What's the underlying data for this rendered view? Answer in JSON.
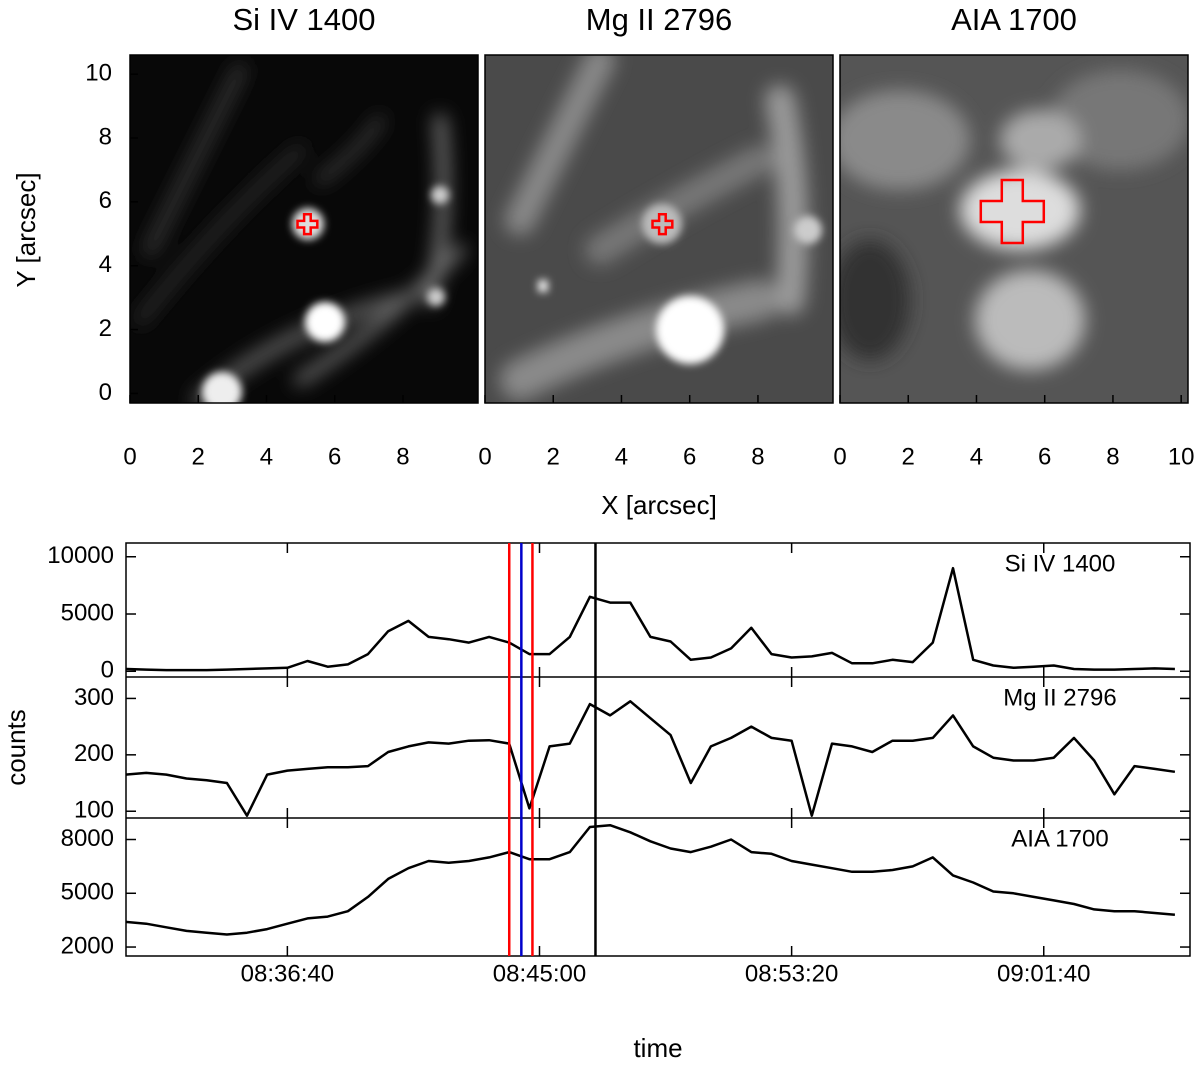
{
  "chart_data": [
    {
      "type": "image",
      "title": "Si IV 1400",
      "xlim": [
        0,
        10.2
      ],
      "ylim": [
        -0.3,
        10.6
      ],
      "xticks": [
        0,
        2,
        4,
        6,
        8
      ],
      "yticks": [
        0,
        2,
        4,
        6,
        8,
        10
      ],
      "ylabel": "Y [arcsec]",
      "marker": [
        5.2,
        5.3
      ],
      "marker_color": "#ff0000"
    },
    {
      "type": "image",
      "title": "Mg II 2796",
      "xlim": [
        0,
        10.2
      ],
      "ylim": [
        -0.3,
        10.6
      ],
      "xticks": [
        0,
        2,
        4,
        6,
        8
      ],
      "xlabel": "X [arcsec]",
      "marker": [
        5.2,
        5.3
      ],
      "marker_color": "#ff0000"
    },
    {
      "type": "image",
      "title": "AIA 1700",
      "xlim": [
        0,
        10.2
      ],
      "ylim": [
        -0.3,
        10.6
      ],
      "xticks": [
        0,
        2,
        4,
        6,
        8,
        10
      ],
      "marker": [
        5.05,
        5.7
      ],
      "marker_color": "#ff0000"
    },
    {
      "type": "line",
      "label": "Si IV 1400",
      "xlim": [
        "08:31:20",
        "09:06:30"
      ],
      "ylim": [
        -500,
        11200
      ],
      "yticks": [
        0,
        5000,
        10000
      ],
      "x": [
        "08:31:20",
        "08:32:00",
        "08:32:40",
        "08:33:20",
        "08:34:00",
        "08:34:40",
        "08:35:20",
        "08:36:00",
        "08:36:40",
        "08:37:20",
        "08:38:00",
        "08:38:40",
        "08:39:20",
        "08:40:00",
        "08:40:40",
        "08:41:20",
        "08:42:00",
        "08:42:40",
        "08:43:20",
        "08:44:00",
        "08:44:40",
        "08:45:20",
        "08:46:00",
        "08:46:40",
        "08:47:20",
        "08:48:00",
        "08:48:40",
        "08:49:20",
        "08:50:00",
        "08:50:40",
        "08:51:20",
        "08:52:00",
        "08:52:40",
        "08:53:20",
        "08:54:00",
        "08:54:40",
        "08:55:20",
        "08:56:00",
        "08:56:40",
        "08:57:20",
        "08:58:00",
        "08:58:40",
        "08:59:20",
        "09:00:00",
        "09:00:40",
        "09:01:20",
        "09:02:00",
        "09:02:40",
        "09:03:20",
        "09:04:00",
        "09:04:40",
        "09:05:20",
        "09:06:00"
      ],
      "series": [
        {
          "color": "#000000",
          "values": [
            200,
            150,
            100,
            100,
            100,
            150,
            200,
            250,
            300,
            900,
            400,
            600,
            1500,
            3500,
            4400,
            3000,
            2800,
            2500,
            3000,
            2500,
            1500,
            1500,
            3000,
            6500,
            6000,
            6000,
            3000,
            2600,
            1000,
            1200,
            2000,
            3800,
            1500,
            1200,
            1300,
            1600,
            700,
            700,
            1000,
            800,
            2500,
            9000,
            1000,
            500,
            300,
            400,
            500,
            200,
            150,
            150,
            200,
            250,
            200
          ]
        }
      ],
      "vlines": [
        {
          "x": "08:44:00",
          "color": "#ff0000"
        },
        {
          "x": "08:44:46",
          "color": "#ff0000"
        },
        {
          "x": "08:44:24",
          "color": "#0000cc"
        },
        {
          "x": "08:46:51",
          "color": "#000000"
        }
      ]
    },
    {
      "type": "line",
      "label": "Mg II 2796",
      "ylabel": "counts",
      "xlim": [
        "08:31:20",
        "09:06:30"
      ],
      "ylim": [
        88,
        338
      ],
      "yticks": [
        100,
        200,
        300
      ],
      "x": [
        "08:31:20",
        "08:32:00",
        "08:32:40",
        "08:33:20",
        "08:34:00",
        "08:34:40",
        "08:35:20",
        "08:36:00",
        "08:36:40",
        "08:37:20",
        "08:38:00",
        "08:38:40",
        "08:39:20",
        "08:40:00",
        "08:40:40",
        "08:41:20",
        "08:42:00",
        "08:42:40",
        "08:43:20",
        "08:44:00",
        "08:44:40",
        "08:45:20",
        "08:46:00",
        "08:46:40",
        "08:47:20",
        "08:48:00",
        "08:48:40",
        "08:49:20",
        "08:50:00",
        "08:50:40",
        "08:51:20",
        "08:52:00",
        "08:52:40",
        "08:53:20",
        "08:54:00",
        "08:54:40",
        "08:55:20",
        "08:56:00",
        "08:56:40",
        "08:57:20",
        "08:58:00",
        "08:58:40",
        "08:59:20",
        "09:00:00",
        "09:00:40",
        "09:01:20",
        "09:02:00",
        "09:02:40",
        "09:03:20",
        "09:04:00",
        "09:04:40",
        "09:05:20",
        "09:06:00"
      ],
      "series": [
        {
          "color": "#000000",
          "values": [
            165,
            168,
            165,
            158,
            155,
            150,
            92,
            165,
            172,
            175,
            178,
            178,
            180,
            205,
            215,
            222,
            220,
            225,
            226,
            220,
            105,
            215,
            220,
            290,
            270,
            295,
            265,
            235,
            150,
            215,
            230,
            250,
            230,
            225,
            92,
            220,
            215,
            205,
            225,
            225,
            230,
            270,
            215,
            195,
            190,
            190,
            195,
            230,
            190,
            130,
            180,
            175,
            170
          ]
        }
      ]
    },
    {
      "type": "line",
      "label": "AIA 1700",
      "xlabel": "time",
      "xlim": [
        "08:31:20",
        "09:06:30"
      ],
      "ylim": [
        1500,
        9200
      ],
      "yticks": [
        2000,
        5000,
        8000
      ],
      "xticks": [
        "08:36:40",
        "08:45:00",
        "08:53:20",
        "09:01:40"
      ],
      "x": [
        "08:31:20",
        "08:32:00",
        "08:32:40",
        "08:33:20",
        "08:34:00",
        "08:34:40",
        "08:35:20",
        "08:36:00",
        "08:36:40",
        "08:37:20",
        "08:38:00",
        "08:38:40",
        "08:39:20",
        "08:40:00",
        "08:40:40",
        "08:41:20",
        "08:42:00",
        "08:42:40",
        "08:43:20",
        "08:44:00",
        "08:44:40",
        "08:45:20",
        "08:46:00",
        "08:46:40",
        "08:47:20",
        "08:48:00",
        "08:48:40",
        "08:49:20",
        "08:50:00",
        "08:50:40",
        "08:51:20",
        "08:52:00",
        "08:52:40",
        "08:53:20",
        "08:54:00",
        "08:54:40",
        "08:55:20",
        "08:56:00",
        "08:56:40",
        "08:57:20",
        "08:58:00",
        "08:58:40",
        "08:59:20",
        "09:00:00",
        "09:00:40",
        "09:01:20",
        "09:02:00",
        "09:02:40",
        "09:03:20",
        "09:04:00",
        "09:04:40",
        "09:05:20",
        "09:06:00"
      ],
      "series": [
        {
          "color": "#000000",
          "values": [
            3400,
            3300,
            3100,
            2900,
            2800,
            2700,
            2800,
            3000,
            3300,
            3600,
            3700,
            4000,
            4800,
            5800,
            6400,
            6800,
            6700,
            6800,
            7000,
            7300,
            6900,
            6900,
            7300,
            8700,
            8800,
            8400,
            7900,
            7500,
            7300,
            7600,
            8000,
            7300,
            7200,
            6800,
            6600,
            6400,
            6200,
            6200,
            6300,
            6500,
            7000,
            6000,
            5600,
            5100,
            5000,
            4800,
            4600,
            4400,
            4100,
            4000,
            4000,
            3900,
            3800
          ]
        }
      ]
    }
  ]
}
